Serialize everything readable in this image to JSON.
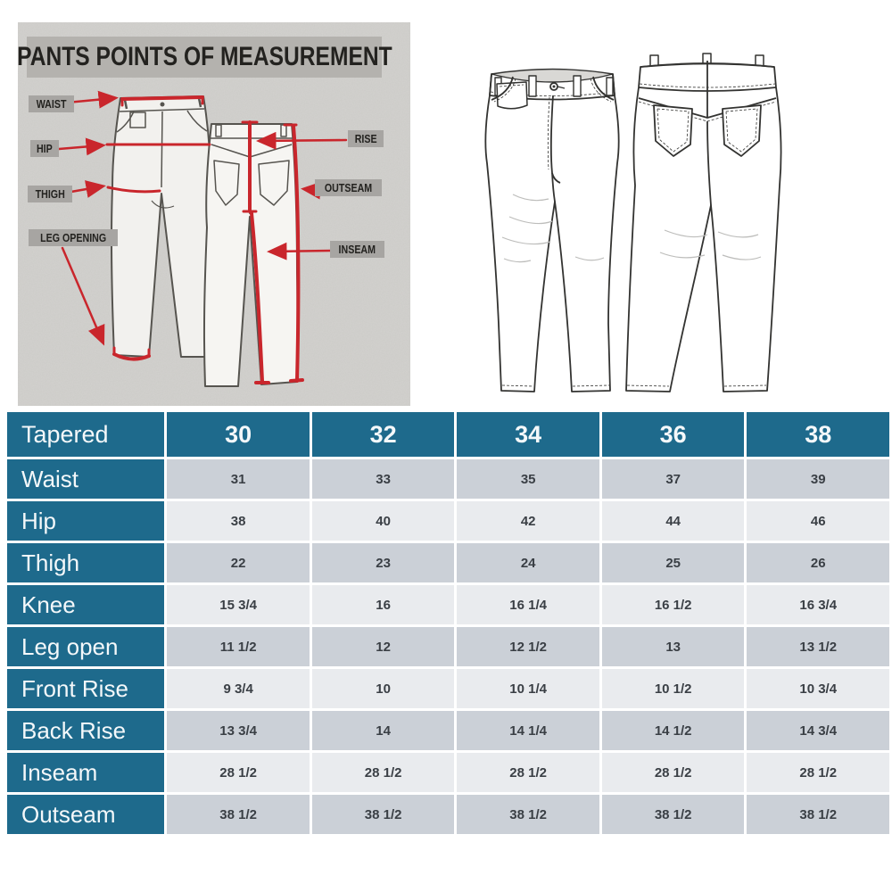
{
  "diagram": {
    "title": "PANTS POINTS OF MEASUREMENT",
    "labels": {
      "waist": "WAIST",
      "hip": "HIP",
      "thigh": "THIGH",
      "leg_opening": "LEG OPENING",
      "rise": "RISE",
      "outseam": "OUTSEAM",
      "inseam": "INSEAM"
    },
    "colors": {
      "background": "#d3d2cf",
      "title_band": "#b4b2ae",
      "label_chip": "#a7a5a2",
      "measure_red": "#c9262c"
    }
  },
  "size_chart_colors": {
    "header_bg": "#1e6a8c",
    "row_dark": "#cbd0d7",
    "row_light": "#e9ebee",
    "value_text": "#3a3f45"
  },
  "chart_data": {
    "type": "table",
    "title": "Tapered",
    "columns": [
      "30",
      "32",
      "34",
      "36",
      "38"
    ],
    "rows": [
      {
        "label": "Waist",
        "values": [
          "31",
          "33",
          "35",
          "37",
          "39"
        ]
      },
      {
        "label": "Hip",
        "values": [
          "38",
          "40",
          "42",
          "44",
          "46"
        ]
      },
      {
        "label": "Thigh",
        "values": [
          "22",
          "23",
          "24",
          "25",
          "26"
        ]
      },
      {
        "label": "Knee",
        "values": [
          "15 3/4",
          "16",
          "16 1/4",
          "16 1/2",
          "16 3/4"
        ]
      },
      {
        "label": "Leg open",
        "values": [
          "11 1/2",
          "12",
          "12 1/2",
          "13",
          "13 1/2"
        ]
      },
      {
        "label": "Front Rise",
        "values": [
          "9 3/4",
          "10",
          "10 1/4",
          "10 1/2",
          "10 3/4"
        ]
      },
      {
        "label": "Back Rise",
        "values": [
          "13 3/4",
          "14",
          "14 1/4",
          "14 1/2",
          "14 3/4"
        ]
      },
      {
        "label": "Inseam",
        "values": [
          "28 1/2",
          "28 1/2",
          "28 1/2",
          "28 1/2",
          "28 1/2"
        ]
      },
      {
        "label": "Outseam",
        "values": [
          "38 1/2",
          "38 1/2",
          "38 1/2",
          "38 1/2",
          "38 1/2"
        ]
      }
    ]
  }
}
